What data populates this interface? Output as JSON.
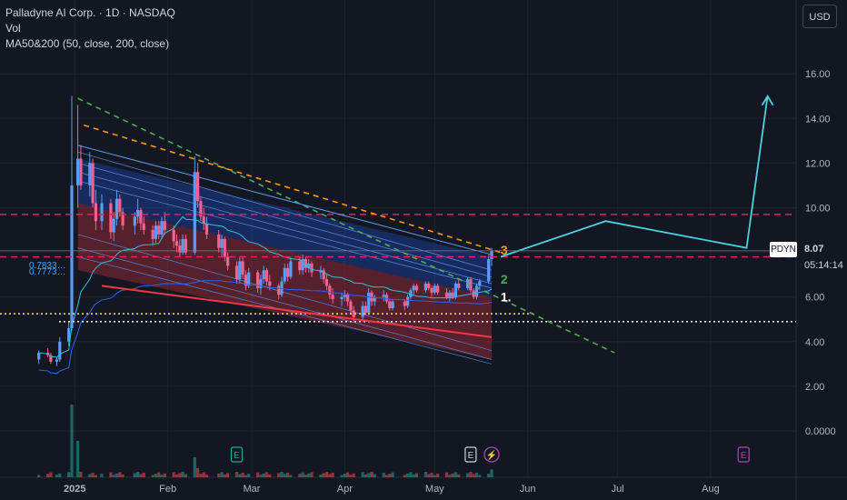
{
  "legend": {
    "title": "Palladyne AI Corp. · 1D · NASDAQ",
    "vol": "Vol",
    "ma": "MA50&200 (50, close, 200, close)"
  },
  "currency_button": "USD",
  "last_price": {
    "ticker": "PDYN",
    "price": "8.07",
    "countdown": "05:14:14"
  },
  "overlay_labels": {
    "fib_a": "0.7833…",
    "fib_b": "0.7773…"
  },
  "event_markers": [
    {
      "label": "E",
      "date": "2025-02-24",
      "color": "#26a69a"
    },
    {
      "label": "E",
      "date": "2025-05-13",
      "color": "#d1d4dc"
    },
    {
      "label": "⚡",
      "date": "2025-05-20",
      "color": "#ab47bc"
    },
    {
      "label": "E",
      "date": "2025-08-12",
      "color": "#ab47bc"
    }
  ],
  "wave_labels": [
    {
      "text": "1.",
      "date": "2025-05-23",
      "price": 5.8,
      "color": "#ffffff"
    },
    {
      "text": "2",
      "date": "2025-05-23",
      "price": 6.6,
      "color": "#4caf50"
    },
    {
      "text": "3",
      "date": "2025-05-23",
      "price": 7.9,
      "color": "#ff9800"
    }
  ],
  "chart_data": {
    "type": "candlestick",
    "title": "Palladyne AI Corp. · 1D · NASDAQ",
    "x_ticks": [
      "2025",
      "Feb",
      "Mar",
      "Apr",
      "May",
      "Jun",
      "Jul",
      "Aug"
    ],
    "y_ticks": [
      "16.00",
      "14.00",
      "12.00",
      "10.00",
      "8.00",
      "6.00",
      "4.00",
      "2.00",
      "0.0000"
    ],
    "ylim": [
      -0.5,
      17.5
    ],
    "last_price": 8.07,
    "horizontal_levels": [
      {
        "price": 9.7,
        "style": "dashed",
        "color": "#e91e63"
      },
      {
        "price": 7.8,
        "style": "dashed",
        "color": "#e91e63"
      },
      {
        "price": 5.25,
        "style": "dotted",
        "color": "#ffeb3b"
      },
      {
        "price": 4.9,
        "style": "dotted",
        "color": "#ffffff"
      }
    ],
    "projection_path": [
      {
        "date": "2025-05-23",
        "price": 7.8
      },
      {
        "date": "2025-06-27",
        "price": 9.4
      },
      {
        "date": "2025-08-13",
        "price": 8.2
      },
      {
        "date": "2025-08-20",
        "price": 15.0
      }
    ],
    "ohlc": [
      [
        "2024-12-20",
        3.2,
        3.6,
        3.0,
        3.5
      ],
      [
        "2024-12-23",
        3.5,
        3.7,
        3.3,
        3.4
      ],
      [
        "2024-12-24",
        3.4,
        3.5,
        3.0,
        3.1
      ],
      [
        "2024-12-26",
        3.1,
        3.3,
        2.9,
        3.2
      ],
      [
        "2024-12-27",
        3.2,
        4.2,
        3.1,
        4.0
      ],
      [
        "2024-12-30",
        4.0,
        4.9,
        3.8,
        4.6
      ],
      [
        "2024-12-31",
        4.6,
        15.0,
        4.5,
        11.0
      ],
      [
        "2025-01-02",
        11.0,
        14.6,
        10.0,
        12.2
      ],
      [
        "2025-01-03",
        12.2,
        12.8,
        10.8,
        11.0
      ],
      [
        "2025-01-06",
        11.0,
        12.5,
        10.5,
        12.0
      ],
      [
        "2025-01-07",
        12.0,
        12.2,
        10.0,
        10.2
      ],
      [
        "2025-01-08",
        10.2,
        10.8,
        9.0,
        9.4
      ],
      [
        "2025-01-10",
        9.4,
        10.6,
        9.0,
        10.2
      ],
      [
        "2025-01-13",
        10.2,
        10.4,
        8.6,
        8.9
      ],
      [
        "2025-01-14",
        8.9,
        9.8,
        8.5,
        9.5
      ],
      [
        "2025-01-15",
        9.5,
        10.8,
        9.2,
        10.4
      ],
      [
        "2025-01-16",
        10.4,
        10.6,
        9.6,
        9.8
      ],
      [
        "2025-01-17",
        9.8,
        10.0,
        9.0,
        9.2
      ],
      [
        "2025-01-21",
        9.2,
        9.8,
        8.8,
        9.6
      ],
      [
        "2025-01-22",
        9.6,
        10.4,
        9.3,
        9.9
      ],
      [
        "2025-01-23",
        9.9,
        10.0,
        9.0,
        9.3
      ],
      [
        "2025-01-24",
        9.3,
        9.6,
        8.8,
        9.0
      ],
      [
        "2025-01-27",
        9.0,
        9.2,
        8.3,
        8.6
      ],
      [
        "2025-01-28",
        8.6,
        9.4,
        8.4,
        9.2
      ],
      [
        "2025-01-29",
        9.2,
        9.4,
        8.6,
        8.8
      ],
      [
        "2025-01-30",
        8.8,
        9.6,
        8.6,
        9.4
      ],
      [
        "2025-01-31",
        9.4,
        9.8,
        8.8,
        9.0
      ],
      [
        "2025-02-03",
        9.0,
        9.2,
        8.2,
        8.5
      ],
      [
        "2025-02-04",
        8.5,
        8.8,
        8.0,
        8.3
      ],
      [
        "2025-02-05",
        8.3,
        8.6,
        7.8,
        8.0
      ],
      [
        "2025-02-06",
        8.0,
        8.8,
        7.9,
        8.6
      ],
      [
        "2025-02-07",
        8.6,
        8.8,
        7.9,
        8.0
      ],
      [
        "2025-02-10",
        8.0,
        12.3,
        7.9,
        11.6
      ],
      [
        "2025-02-11",
        11.6,
        12.0,
        10.0,
        10.3
      ],
      [
        "2025-02-12",
        10.3,
        10.5,
        9.4,
        9.6
      ],
      [
        "2025-02-13",
        9.6,
        10.0,
        9.0,
        9.3
      ],
      [
        "2025-02-14",
        9.3,
        9.6,
        8.6,
        8.8
      ],
      [
        "2025-02-18",
        8.8,
        9.0,
        8.0,
        8.2
      ],
      [
        "2025-02-19",
        8.2,
        8.8,
        7.8,
        8.6
      ],
      [
        "2025-02-20",
        8.6,
        8.7,
        7.6,
        7.8
      ],
      [
        "2025-02-21",
        7.8,
        8.0,
        7.2,
        7.4
      ],
      [
        "2025-02-24",
        7.4,
        7.6,
        6.6,
        6.8
      ],
      [
        "2025-02-25",
        6.8,
        7.8,
        6.6,
        7.6
      ],
      [
        "2025-02-26",
        7.6,
        7.8,
        6.8,
        7.0
      ],
      [
        "2025-02-27",
        7.0,
        7.2,
        6.3,
        6.5
      ],
      [
        "2025-02-28",
        6.5,
        7.3,
        6.4,
        7.1
      ],
      [
        "2025-03-03",
        7.1,
        7.2,
        6.2,
        6.4
      ],
      [
        "2025-03-04",
        6.4,
        7.0,
        6.1,
        6.8
      ],
      [
        "2025-03-05",
        6.8,
        7.4,
        6.6,
        7.2
      ],
      [
        "2025-03-06",
        7.2,
        7.3,
        6.5,
        6.7
      ],
      [
        "2025-03-07",
        6.7,
        7.0,
        6.3,
        6.5
      ],
      [
        "2025-03-10",
        6.5,
        6.6,
        5.9,
        6.1
      ],
      [
        "2025-03-11",
        6.1,
        6.9,
        6.0,
        6.7
      ],
      [
        "2025-03-12",
        6.7,
        7.5,
        6.6,
        7.3
      ],
      [
        "2025-03-13",
        7.3,
        7.5,
        6.7,
        6.9
      ],
      [
        "2025-03-14",
        6.9,
        7.8,
        6.8,
        7.6
      ],
      [
        "2025-03-17",
        7.6,
        7.8,
        7.0,
        7.2
      ],
      [
        "2025-03-18",
        7.2,
        7.9,
        7.0,
        7.7
      ],
      [
        "2025-03-19",
        7.7,
        7.8,
        7.1,
        7.3
      ],
      [
        "2025-03-20",
        7.3,
        7.7,
        7.1,
        7.5
      ],
      [
        "2025-03-21",
        7.5,
        7.6,
        6.9,
        7.1
      ],
      [
        "2025-03-24",
        7.1,
        7.4,
        6.8,
        7.2
      ],
      [
        "2025-03-25",
        7.2,
        7.3,
        6.6,
        6.8
      ],
      [
        "2025-03-26",
        6.8,
        7.0,
        6.3,
        6.5
      ],
      [
        "2025-03-27",
        6.5,
        6.6,
        5.9,
        6.1
      ],
      [
        "2025-03-28",
        6.1,
        6.4,
        5.7,
        5.9
      ],
      [
        "2025-03-31",
        5.9,
        6.2,
        5.6,
        6.0
      ],
      [
        "2025-04-01",
        6.0,
        6.3,
        5.8,
        6.1
      ],
      [
        "2025-04-02",
        6.1,
        6.2,
        5.6,
        5.8
      ],
      [
        "2025-04-03",
        5.8,
        5.9,
        5.2,
        5.4
      ],
      [
        "2025-04-04",
        5.4,
        5.6,
        4.9,
        5.1
      ],
      [
        "2025-04-07",
        5.1,
        5.8,
        4.9,
        5.6
      ],
      [
        "2025-04-08",
        5.6,
        5.8,
        5.2,
        5.3
      ],
      [
        "2025-04-09",
        5.3,
        6.4,
        5.2,
        6.2
      ],
      [
        "2025-04-10",
        6.2,
        6.3,
        5.6,
        5.8
      ],
      [
        "2025-04-11",
        5.8,
        6.1,
        5.6,
        6.0
      ],
      [
        "2025-04-14",
        6.0,
        6.3,
        5.8,
        6.1
      ],
      [
        "2025-04-15",
        6.1,
        6.2,
        5.7,
        5.8
      ],
      [
        "2025-04-16",
        5.8,
        5.9,
        5.4,
        5.5
      ],
      [
        "2025-04-17",
        5.5,
        5.9,
        5.4,
        5.8
      ],
      [
        "2025-04-21",
        5.8,
        5.9,
        5.4,
        5.6
      ],
      [
        "2025-04-22",
        5.6,
        6.1,
        5.5,
        6.0
      ],
      [
        "2025-04-23",
        6.0,
        6.4,
        5.9,
        6.3
      ],
      [
        "2025-04-24",
        6.3,
        6.6,
        6.1,
        6.5
      ],
      [
        "2025-04-25",
        6.5,
        6.6,
        6.2,
        6.3
      ],
      [
        "2025-04-28",
        6.3,
        6.7,
        6.2,
        6.6
      ],
      [
        "2025-04-29",
        6.6,
        6.7,
        6.3,
        6.4
      ],
      [
        "2025-04-30",
        6.4,
        6.5,
        6.0,
        6.2
      ],
      [
        "2025-05-01",
        6.2,
        6.6,
        6.1,
        6.5
      ],
      [
        "2025-05-02",
        6.5,
        6.6,
        6.1,
        6.2
      ],
      [
        "2025-05-05",
        6.2,
        6.4,
        5.9,
        6.0
      ],
      [
        "2025-05-06",
        6.0,
        6.3,
        5.8,
        6.2
      ],
      [
        "2025-05-07",
        6.2,
        6.4,
        5.9,
        6.0
      ],
      [
        "2025-05-08",
        6.0,
        6.7,
        5.9,
        6.6
      ],
      [
        "2025-05-09",
        6.6,
        6.8,
        6.3,
        6.4
      ],
      [
        "2025-05-12",
        6.4,
        6.9,
        6.3,
        6.8
      ],
      [
        "2025-05-13",
        6.8,
        6.9,
        6.2,
        6.3
      ],
      [
        "2025-05-14",
        6.3,
        6.4,
        5.9,
        6.0
      ],
      [
        "2025-05-15",
        6.0,
        6.6,
        5.9,
        6.5
      ],
      [
        "2025-05-16",
        6.5,
        6.8,
        6.3,
        6.7
      ],
      [
        "2025-05-19",
        6.7,
        7.9,
        6.6,
        7.7
      ],
      [
        "2025-05-20",
        7.7,
        8.2,
        7.4,
        8.07
      ]
    ]
  }
}
